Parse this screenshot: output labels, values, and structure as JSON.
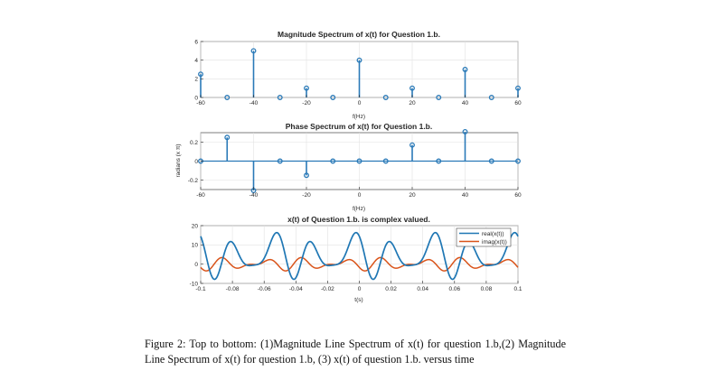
{
  "chart_data": [
    {
      "type": "stem",
      "title": "Magnitude Spectrum of x(t) for Question 1.b.",
      "xlabel": "f(Hz)",
      "ylabel": "",
      "xlim": [
        -60,
        60
      ],
      "ylim": [
        0,
        6
      ],
      "xticks": [
        -60,
        -40,
        -20,
        0,
        20,
        40,
        60
      ],
      "yticks": [
        0,
        2,
        4,
        6
      ],
      "x": [
        -60,
        -50,
        -40,
        -30,
        -20,
        -10,
        0,
        10,
        20,
        30,
        40,
        50,
        60
      ],
      "y": [
        2.5,
        0,
        5,
        0,
        1,
        0,
        4,
        0,
        1,
        0,
        3,
        0,
        1
      ],
      "color": "#2a7ab8"
    },
    {
      "type": "stem",
      "title": "Phase Spectrum of x(t) for Question 1.b.",
      "xlabel": "f(Hz)",
      "ylabel": "radians (x π)",
      "xlim": [
        -60,
        60
      ],
      "ylim": [
        -0.3,
        0.3
      ],
      "xticks": [
        -60,
        -40,
        -20,
        0,
        20,
        40,
        60
      ],
      "yticks": [
        -0.2,
        0,
        0.2
      ],
      "x": [
        -60,
        -50,
        -40,
        -30,
        -20,
        -10,
        0,
        10,
        20,
        30,
        40,
        50,
        60
      ],
      "y": [
        0,
        0.25,
        -0.31,
        0,
        -0.15,
        0,
        0,
        0,
        0.17,
        0,
        0.31,
        0,
        0
      ],
      "color": "#2a7ab8"
    },
    {
      "type": "line",
      "title": "x(t) of Question 1.b. is complex valued.",
      "xlabel": "t(s)",
      "ylabel": "",
      "xlim": [
        -0.1,
        0.1
      ],
      "ylim": [
        -10,
        20
      ],
      "xticks": [
        -0.1,
        -0.08,
        -0.06,
        -0.04,
        -0.02,
        0,
        0.02,
        0.04,
        0.06,
        0.08,
        0.1
      ],
      "xticklabels": [
        "-0.1",
        "-0.08",
        "-0.06",
        "-0.04",
        "-0.02",
        "0",
        "0.02",
        "0.04",
        "0.06",
        "0.08",
        "0.1"
      ],
      "yticks": [
        -10,
        0,
        10,
        20
      ],
      "series": [
        {
          "name": "real(x(t))",
          "color": "#1f77b4"
        },
        {
          "name": "imag(x(t))",
          "color": "#d95319"
        }
      ],
      "legend": "top-right"
    }
  ],
  "caption": "Figure 2: Top to bottom: (1)Magnitude Line Spectrum of x(t) for question 1.b,(2) Magnitude Line Spectrum of x(t) for question 1.b, (3) x(t) of question 1.b. versus time"
}
